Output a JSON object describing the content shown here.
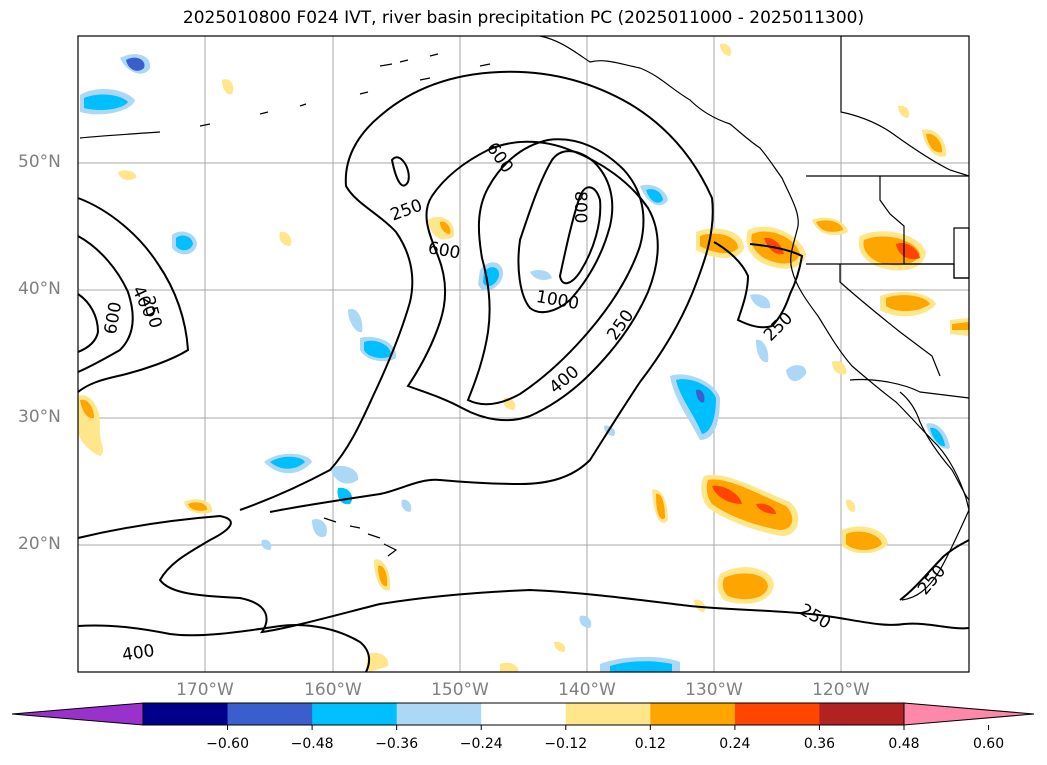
{
  "title": "2025010800 F024 IVT, river basin precipitation PC (2025011000 - 2025011300)",
  "lat_labels": [
    "50°N",
    "40°N",
    "30°N",
    "20°N"
  ],
  "lon_labels": [
    "170°W",
    "160°W",
    "150°W",
    "140°W",
    "130°W",
    "120°W"
  ],
  "ivt_contour_labels": [
    "600",
    "250",
    "600",
    "800",
    "1000",
    "250",
    "400",
    "250",
    "250",
    "250",
    "600",
    "400",
    "250",
    "400"
  ],
  "colorbar": {
    "ticks": [
      "−0.60",
      "−0.48",
      "−0.36",
      "−0.24",
      "−0.12",
      "0.12",
      "0.24",
      "0.36",
      "0.48",
      "0.60"
    ],
    "colors": [
      "#9932cc",
      "#00008b",
      "#3a5fcd",
      "#00bfff",
      "#add8f5",
      "#ffffff",
      "#ffe68a",
      "#ffa500",
      "#ff4500",
      "#b22222",
      "#ff88aa"
    ]
  },
  "colors": {
    "coast": "#000000",
    "grid": "#a9a9a9",
    "axis_label": "#808080"
  }
}
